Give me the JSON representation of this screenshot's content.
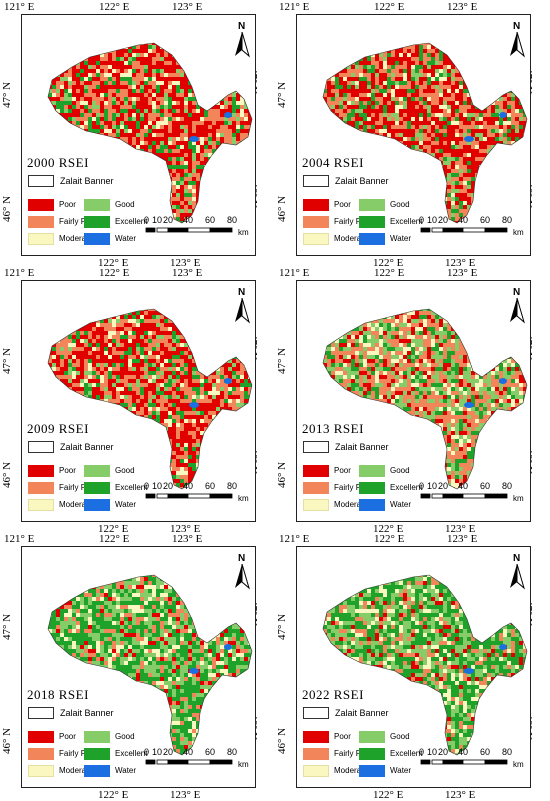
{
  "colors": {
    "poor": "#e00000",
    "fairly_poor": "#f2855a",
    "moderate": "#fbf7c0",
    "good": "#86cd6a",
    "excellent": "#1ea22a",
    "water": "#1c6fe0",
    "boundary": "#333333"
  },
  "axis_labels": {
    "lon_left": "121° E",
    "lon_mid": "122° E",
    "lon_right": "123° E",
    "lat_top": "47° N",
    "lat_bottom": "46° N"
  },
  "north_label": "N",
  "legend": {
    "banner": "Zalait Banner",
    "poor": "Poor",
    "fairly_poor": "Fairly Poor",
    "moderate": "Moderate",
    "good": "Good",
    "excellent": "Excellent",
    "water": "Water"
  },
  "scale_bar": {
    "ticks": [
      "0",
      "10",
      "20",
      "40",
      "60",
      "80"
    ],
    "unit": "km"
  },
  "panels": [
    {
      "title": "2000 RSEI",
      "dominant": "poor"
    },
    {
      "title": "2004 RSEI",
      "dominant": "poor"
    },
    {
      "title": "2009 RSEI",
      "dominant": "poor"
    },
    {
      "title": "2013 RSEI",
      "dominant": "fairly_poor"
    },
    {
      "title": "2018 RSEI",
      "dominant": "excellent"
    },
    {
      "title": "2022 RSEI",
      "dominant": "excellent"
    }
  ]
}
